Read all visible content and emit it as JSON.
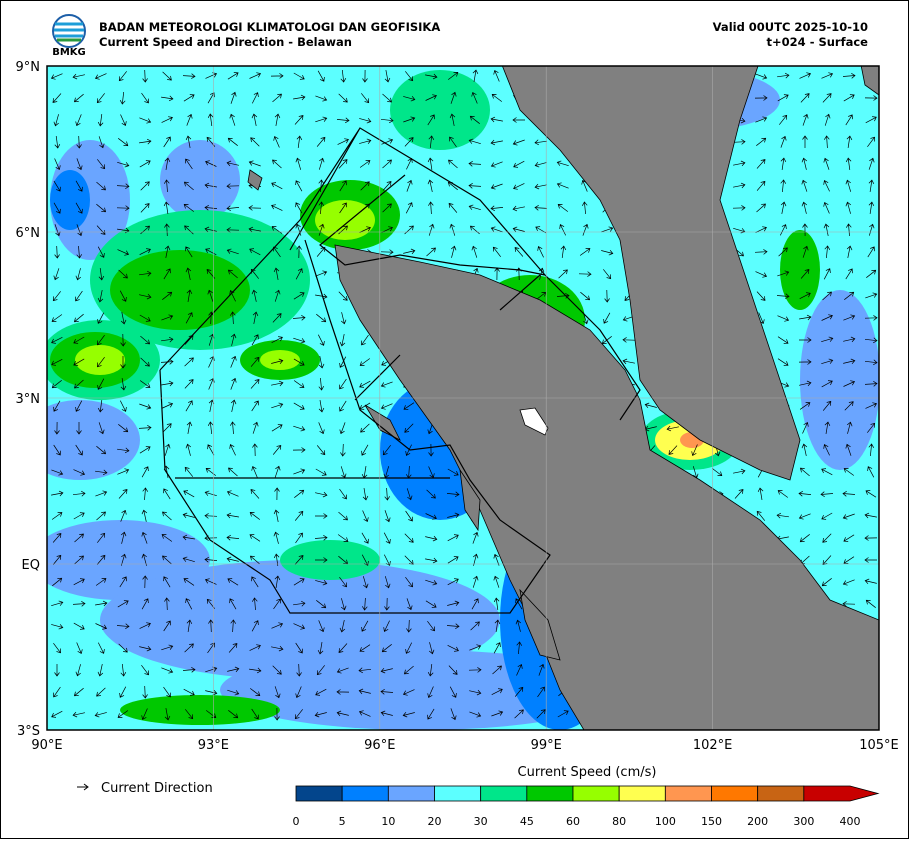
{
  "header": {
    "logo_text": "BMKG",
    "agency": "BADAN METEOROLOGI KLIMATOLOGI DAN GEOFISIKA",
    "subtitle": "Current Speed and Direction - Belawan",
    "valid": "Valid 00UTC 2025-10-10",
    "step": "t+024 - Surface"
  },
  "map": {
    "lat_ticks": [
      {
        "value": 9,
        "label": "9°N"
      },
      {
        "value": 6,
        "label": "6°N"
      },
      {
        "value": 3,
        "label": "3°N"
      },
      {
        "value": 0,
        "label": "EQ"
      },
      {
        "value": -3,
        "label": "3°S"
      }
    ],
    "lon_ticks": [
      {
        "value": 90,
        "label": "90°E"
      },
      {
        "value": 93,
        "label": "93°E"
      },
      {
        "value": 96,
        "label": "96°E"
      },
      {
        "value": 99,
        "label": "99°E"
      },
      {
        "value": 102,
        "label": "102°E"
      },
      {
        "value": 105,
        "label": "105°E"
      }
    ],
    "lat_range": [
      -3,
      9
    ],
    "lon_range": [
      90,
      105
    ]
  },
  "legend": {
    "direction_label": "Current Direction"
  },
  "colorbar": {
    "title": "Current Speed (cm/s)",
    "levels": [
      0,
      5,
      10,
      20,
      30,
      45,
      60,
      80,
      100,
      150,
      200,
      300,
      400
    ],
    "colors": [
      "#03458c",
      "#0080ff",
      "#6aa5ff",
      "#5cffff",
      "#00e68a",
      "#00c800",
      "#96ff00",
      "#ffff50",
      "#ff9650",
      "#ff7800",
      "#c86414",
      "#c80000"
    ]
  }
}
